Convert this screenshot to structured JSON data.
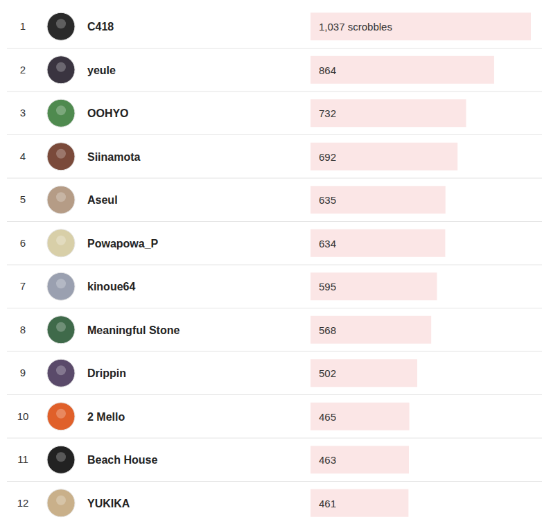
{
  "chart_data": {
    "type": "bar",
    "orientation": "horizontal",
    "categories": [
      "C418",
      "yeule",
      "OOHYO",
      "Siinamota",
      "Aseul",
      "Powapowa_P",
      "kinoue64",
      "Meaningful Stone",
      "Drippin",
      "2 Mello",
      "Beach House",
      "YUKIKA"
    ],
    "ranks": [
      1,
      2,
      3,
      4,
      5,
      6,
      7,
      8,
      9,
      10,
      11,
      12
    ],
    "values": [
      1037,
      864,
      732,
      692,
      635,
      634,
      595,
      568,
      502,
      465,
      463,
      461
    ],
    "value_labels": [
      "1,037 scrobbles",
      "864",
      "732",
      "692",
      "635",
      "634",
      "595",
      "568",
      "502",
      "465",
      "463",
      "461"
    ],
    "data_labels": true,
    "color": "#fbe6e6",
    "xlim": [
      0,
      1037
    ],
    "tick_labels": "y",
    "grid": false
  }
}
